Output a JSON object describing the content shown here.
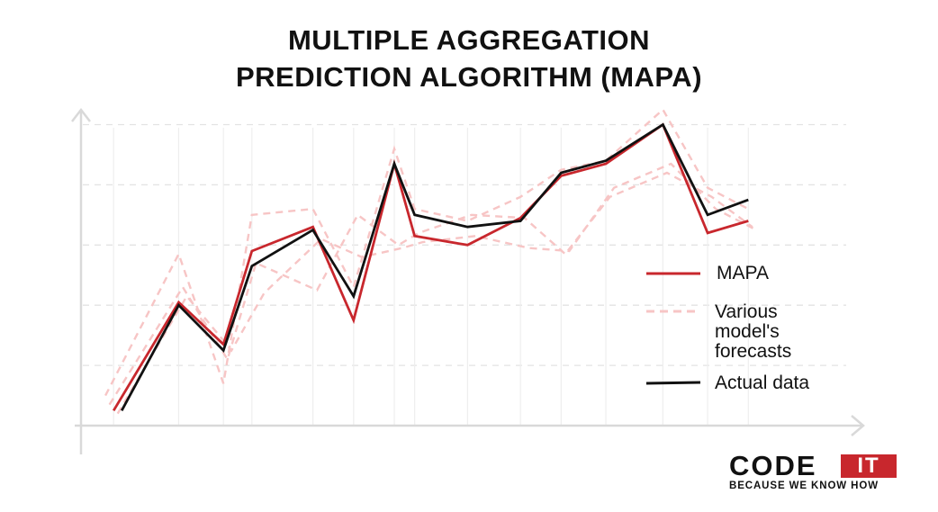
{
  "title_lines": [
    "MULTIPLE AGGREGATION",
    "PREDICTION ALGORITHM (MAPA)"
  ],
  "legend": {
    "mapa": "MAPA",
    "forecasts_lines": [
      "Various",
      "model's",
      "forecasts"
    ],
    "actual": "Actual data"
  },
  "logo": {
    "code": "CODE",
    "it": "IT",
    "tagline": "BECAUSE WE KNOW HOW"
  },
  "colors": {
    "mapa": "#c8272d",
    "forecasts": "#f7c5c5",
    "actual": "#111111",
    "grid": "#e3e3e3",
    "axis": "#d9d9d9"
  },
  "chart_data": {
    "type": "line",
    "ylim": [
      0,
      5
    ],
    "grid": true,
    "legend_position": "right",
    "series": [
      {
        "name": "MAPA",
        "x": [
          0.8,
          2.4,
          3.5,
          4.2,
          5.7,
          6.7,
          7.7,
          8.2,
          9.5,
          10.8,
          11.8,
          12.9,
          14.3,
          15.4,
          16.4
        ],
        "values": [
          0.25,
          2.05,
          1.35,
          2.9,
          3.3,
          1.75,
          4.35,
          3.15,
          3.0,
          3.45,
          4.15,
          4.35,
          5.0,
          3.2,
          3.4
        ]
      },
      {
        "name": "Various model's forecasts",
        "x": [
          0.6,
          2.4,
          3.5,
          4.2,
          5.7,
          6.7,
          7.7,
          8.2,
          9.5,
          10.8,
          11.8,
          12.9,
          14.3,
          15.4,
          16.4
        ],
        "values": [
          0.5,
          2.85,
          0.7,
          3.5,
          3.6,
          2.3,
          4.6,
          3.6,
          3.4,
          3.8,
          4.25,
          4.4,
          5.25,
          3.95,
          3.6
        ]
      },
      {
        "name": "",
        "x": [
          0.7,
          2.5,
          3.6,
          4.3,
          5.8,
          6.8,
          7.8,
          8.3,
          9.6,
          10.9,
          11.9,
          13.0,
          14.4,
          15.5,
          16.5
        ],
        "values": [
          0.35,
          2.3,
          1.1,
          2.7,
          2.25,
          3.5,
          3.0,
          3.2,
          3.5,
          3.45,
          2.85,
          3.8,
          4.2,
          3.8,
          3.3
        ]
      },
      {
        "name": "",
        "x": [
          0.9,
          2.6,
          3.7,
          4.5,
          5.9,
          6.9,
          7.9,
          8.4,
          9.7,
          11.0,
          12.0,
          13.1,
          14.5,
          15.6,
          16.6
        ],
        "values": [
          0.2,
          2.15,
          1.25,
          2.2,
          3.1,
          2.8,
          2.95,
          3.05,
          3.15,
          2.95,
          2.9,
          3.95,
          4.35,
          3.6,
          3.25
        ]
      },
      {
        "name": "Actual data",
        "x": [
          1.0,
          2.4,
          3.5,
          4.2,
          5.7,
          6.7,
          7.7,
          8.2,
          9.5,
          10.8,
          11.8,
          12.9,
          14.3,
          15.4,
          16.4
        ],
        "values": [
          0.25,
          2.0,
          1.25,
          2.65,
          3.25,
          2.15,
          4.35,
          3.5,
          3.3,
          3.4,
          4.2,
          4.4,
          5.0,
          3.5,
          3.75
        ]
      }
    ]
  }
}
